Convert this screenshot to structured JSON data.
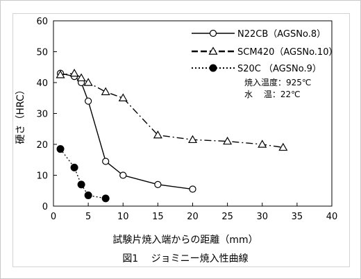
{
  "caption": "図1　 ジョミニー焼入性曲線",
  "chart_data": {
    "type": "line",
    "xlabel": "試験片焼入端からの距離（mm）",
    "ylabel": "硬さ（HRC）",
    "xlim": [
      0,
      40
    ],
    "ylim": [
      0,
      60
    ],
    "xticks": [
      "0",
      "5",
      "10",
      "15",
      "20",
      "25",
      "30",
      "35",
      "40"
    ],
    "yticks": [
      "0",
      "10",
      "20",
      "30",
      "40",
      "50",
      "60"
    ],
    "grid": false,
    "legend_position": "top-right",
    "series": [
      {
        "name": "N22CB（AGSNo.8）",
        "marker": "circle-open",
        "line": "solid",
        "x": [
          1,
          3,
          4,
          5,
          7.5,
          10,
          15,
          20
        ],
        "y": [
          43,
          42,
          40,
          34,
          14.5,
          10,
          7,
          5.5
        ]
      },
      {
        "name": "SCM420（AGSNo.10）",
        "marker": "triangle-open",
        "line": "dash-dot",
        "x": [
          1,
          3,
          4,
          5,
          7.5,
          10,
          15,
          20,
          25,
          30,
          33
        ],
        "y": [
          42.5,
          43,
          41.5,
          40,
          37,
          35,
          23,
          21.5,
          21,
          20,
          19
        ]
      },
      {
        "name": "S20C （AGSNo.9）",
        "marker": "circle-filled",
        "line": "dotted",
        "x": [
          1,
          3,
          4,
          5,
          7.5
        ],
        "y": [
          18.5,
          12.5,
          7,
          3.5,
          2.5
        ]
      }
    ],
    "annotations": [
      "焼入温度：925℃",
      "水　  温：22℃"
    ]
  }
}
